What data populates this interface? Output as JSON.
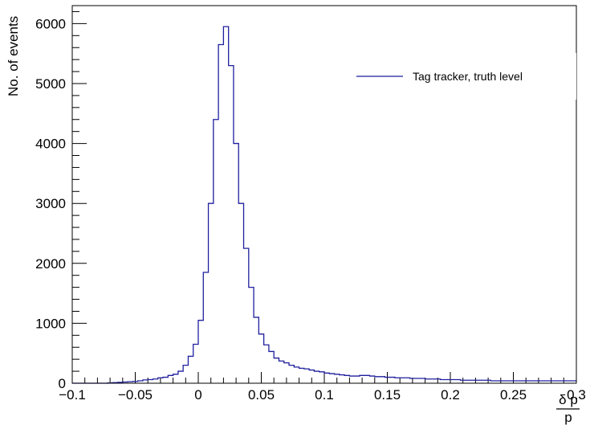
{
  "chart_data": {
    "type": "histogram",
    "title": "",
    "xlabel_numerator": "δ p",
    "xlabel_denominator": "p",
    "ylabel": "No. of events",
    "xlim": [
      -0.1,
      0.3
    ],
    "ylim": [
      0,
      6300
    ],
    "x_ticks": [
      -0.1,
      -0.05,
      0,
      0.05,
      0.1,
      0.15,
      0.2,
      0.25,
      0.3
    ],
    "x_tick_labels": [
      "−0.1",
      "−0.05",
      "0",
      "0.05",
      "0.1",
      "0.15",
      "0.2",
      "0.25",
      "0.3"
    ],
    "y_ticks": [
      0,
      1000,
      2000,
      3000,
      4000,
      5000,
      6000
    ],
    "y_tick_labels": [
      "0",
      "1000",
      "2000",
      "3000",
      "4000",
      "5000",
      "6000"
    ],
    "bin_edges_start": -0.1,
    "bin_width": 0.004,
    "series": [
      {
        "name": "Tag tracker, truth level",
        "color": "#1f1f9e",
        "values": [
          0,
          0,
          0,
          0,
          0,
          0,
          0,
          5,
          10,
          15,
          20,
          25,
          30,
          40,
          55,
          60,
          70,
          90,
          100,
          130,
          150,
          200,
          300,
          450,
          650,
          1050,
          1850,
          3000,
          4400,
          5650,
          5950,
          5300,
          4000,
          3000,
          2250,
          1600,
          1100,
          820,
          640,
          530,
          420,
          370,
          340,
          300,
          270,
          250,
          240,
          220,
          200,
          190,
          170,
          160,
          150,
          140,
          130,
          120,
          120,
          130,
          130,
          120,
          110,
          110,
          100,
          100,
          90,
          90,
          90,
          80,
          80,
          80,
          70,
          70,
          70,
          60,
          60,
          60,
          60,
          50,
          50,
          50,
          50,
          50,
          50,
          40,
          40,
          40,
          40,
          40,
          40,
          40,
          40,
          40,
          40,
          40,
          40,
          40,
          40,
          40,
          40,
          40
        ]
      }
    ],
    "legend_position": "top-right"
  }
}
